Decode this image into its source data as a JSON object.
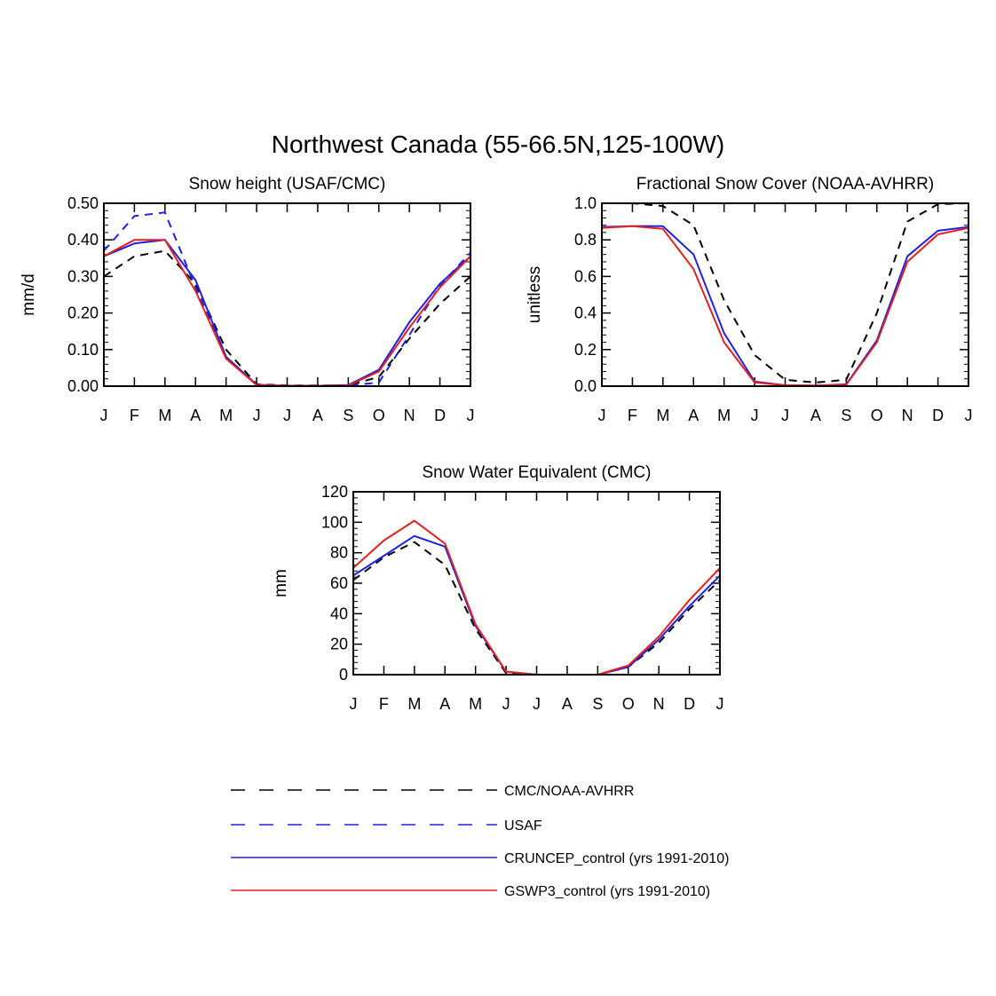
{
  "figure_title": "Northwest Canada (55-66.5N,125-100W)",
  "colors": {
    "obs": "#000000",
    "usaf": "#1f1fe6",
    "cruncep": "#1f1fe6",
    "gswp3": "#e61f1f"
  },
  "chart_data": [
    {
      "type": "line",
      "title": "Snow height (USAF/CMC)",
      "ylabel": "mm/d",
      "xlabel": "",
      "categories": [
        "J",
        "F",
        "M",
        "A",
        "M",
        "J",
        "J",
        "A",
        "S",
        "O",
        "N",
        "D",
        "J"
      ],
      "ylim": [
        0,
        0.5
      ],
      "yticks": [
        "0.00",
        "0.10",
        "0.20",
        "0.30",
        "0.40",
        "0.50"
      ],
      "series": [
        {
          "name": "CMC/NOAA-AVHRR",
          "style": "dash",
          "color": "#000000",
          "values": [
            0.3,
            0.355,
            0.37,
            0.28,
            0.1,
            0.005,
            0.002,
            0.002,
            0.002,
            0.025,
            0.13,
            0.225,
            0.3
          ]
        },
        {
          "name": "USAF",
          "style": "dash",
          "color": "#1f1fe6",
          "values": [
            0.37,
            0.465,
            0.475,
            0.27,
            0.08,
            0.003,
            0.001,
            0.001,
            0.002,
            0.01,
            0.14,
            0.275,
            0.365
          ]
        },
        {
          "name": "CRUNCEP_control (yrs 1991-2010)",
          "style": "solid",
          "color": "#1f1fe6",
          "values": [
            0.355,
            0.39,
            0.4,
            0.29,
            0.08,
            0.004,
            0.001,
            0.001,
            0.003,
            0.045,
            0.175,
            0.28,
            0.355
          ]
        },
        {
          "name": "GSWP3_control (yrs 1991-2010)",
          "style": "solid",
          "color": "#e61f1f",
          "values": [
            0.355,
            0.4,
            0.4,
            0.26,
            0.075,
            0.003,
            0.001,
            0.001,
            0.002,
            0.04,
            0.16,
            0.27,
            0.355
          ]
        }
      ]
    },
    {
      "type": "line",
      "title": "Fractional Snow Cover (NOAA-AVHRR)",
      "ylabel": "unitless",
      "xlabel": "",
      "categories": [
        "J",
        "F",
        "M",
        "A",
        "M",
        "J",
        "J",
        "A",
        "S",
        "O",
        "N",
        "D",
        "J"
      ],
      "ylim": [
        0,
        1.0
      ],
      "yticks": [
        "0.0",
        "0.2",
        "0.4",
        "0.6",
        "0.8",
        "1.0"
      ],
      "series": [
        {
          "name": "CMC/NOAA-AVHRR",
          "style": "dash",
          "color": "#000000",
          "values": [
            1.0,
            1.0,
            0.985,
            0.88,
            0.47,
            0.17,
            0.035,
            0.02,
            0.035,
            0.4,
            0.9,
            0.995,
            1.0
          ]
        },
        {
          "name": "CRUNCEP_control (yrs 1991-2010)",
          "style": "solid",
          "color": "#1f1fe6",
          "values": [
            0.87,
            0.875,
            0.875,
            0.72,
            0.29,
            0.025,
            0.005,
            0.003,
            0.01,
            0.25,
            0.71,
            0.85,
            0.87
          ]
        },
        {
          "name": "GSWP3_control (yrs 1991-2010)",
          "style": "solid",
          "color": "#e61f1f",
          "values": [
            0.865,
            0.875,
            0.86,
            0.64,
            0.24,
            0.02,
            0.005,
            0.003,
            0.008,
            0.24,
            0.68,
            0.83,
            0.865
          ]
        }
      ]
    },
    {
      "type": "line",
      "title": "Snow Water Equivalent (CMC)",
      "ylabel": "mm",
      "xlabel": "",
      "categories": [
        "J",
        "F",
        "M",
        "A",
        "M",
        "J",
        "J",
        "A",
        "S",
        "O",
        "N",
        "D",
        "J"
      ],
      "ylim": [
        0,
        120
      ],
      "yticks": [
        "0",
        "20",
        "40",
        "60",
        "80",
        "100",
        "120"
      ],
      "series": [
        {
          "name": "CMC/NOAA-AVHRR",
          "style": "dash",
          "color": "#000000",
          "values": [
            62,
            77,
            87,
            72,
            30,
            1,
            0,
            0,
            0,
            5,
            21,
            43,
            62
          ]
        },
        {
          "name": "CRUNCEP_control (yrs 1991-2010)",
          "style": "solid",
          "color": "#1f1fe6",
          "values": [
            65,
            78,
            91,
            84,
            32,
            2,
            0,
            0,
            0,
            5,
            23,
            45,
            65
          ]
        },
        {
          "name": "GSWP3_control (yrs 1991-2010)",
          "style": "solid",
          "color": "#e61f1f",
          "values": [
            70,
            88,
            101,
            86,
            33,
            2,
            0,
            0,
            0,
            6,
            25,
            49,
            70
          ]
        }
      ]
    }
  ],
  "legend": [
    {
      "label": "CMC/NOAA-AVHRR",
      "style": "dash",
      "color": "#000000"
    },
    {
      "label": "USAF",
      "style": "dash",
      "color": "#1f1fe6"
    },
    {
      "label": "CRUNCEP_control (yrs 1991-2010)",
      "style": "solid",
      "color": "#1f1fe6"
    },
    {
      "label": "GSWP3_control (yrs 1991-2010)",
      "style": "solid",
      "color": "#e61f1f"
    }
  ]
}
